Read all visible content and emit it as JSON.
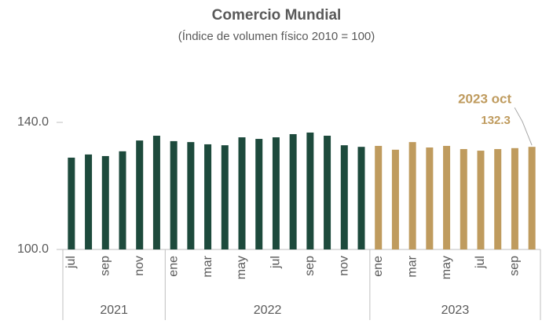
{
  "chart_data": {
    "type": "bar",
    "title": "Comercio Mundial",
    "subtitle": "(Índice de volumen físico 2010 = 100)",
    "categories": [
      "jul",
      null,
      "sep",
      null,
      "nov",
      null,
      "ene",
      null,
      "mar",
      null,
      "may",
      null,
      "jul",
      null,
      "sep",
      null,
      "nov",
      null,
      "ene",
      null,
      "mar",
      null,
      "may",
      null,
      "jul",
      null,
      "sep",
      null
    ],
    "values": [
      128.9,
      129.9,
      129.4,
      130.9,
      134.3,
      135.8,
      134.1,
      133.8,
      133.1,
      132.8,
      135.3,
      134.8,
      135.3,
      136.3,
      136.8,
      135.8,
      132.8,
      132.3,
      132.6,
      131.4,
      133.8,
      132.1,
      132.6,
      131.6,
      131.1,
      131.6,
      131.9,
      132.3
    ],
    "value_labels": [
      null,
      null,
      null,
      null,
      null,
      null,
      null,
      null,
      null,
      null,
      null,
      null,
      null,
      null,
      null,
      null,
      null,
      null,
      null,
      null,
      null,
      null,
      null,
      null,
      null,
      null,
      null,
      "132.3"
    ],
    "annotation": "2023 oct",
    "groups": [
      {
        "label": "2021",
        "span": 6,
        "color": "#1d4a3c"
      },
      {
        "label": "2022",
        "span": 12,
        "color": "#1d4a3c"
      },
      {
        "label": "2023",
        "span": 10,
        "color": "#bf9b5e"
      }
    ],
    "ylim": [
      100,
      150
    ],
    "yticks": [
      {
        "value": 100,
        "label": "100.0"
      },
      {
        "value": 140,
        "label": "140.0"
      }
    ]
  }
}
